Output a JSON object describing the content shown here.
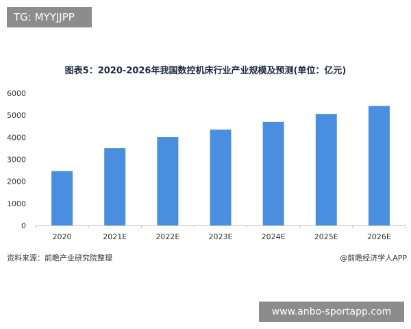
{
  "overlay": {
    "top_tag": "TG: MYYJJPP",
    "bottom_url": "www.anbo-sportapp.com"
  },
  "colors": {
    "bar": "#4a8fdf",
    "axis": "#bfbfbf"
  },
  "footer": {
    "source": "资料来源：前瞻产业研究院整理",
    "credit": "@前瞻经济学人APP"
  },
  "chart_data": {
    "type": "bar",
    "title": "图表5：2020-2026年我国数控机床行业产业规模及预测(单位：亿元)",
    "categories": [
      "2020",
      "2021E",
      "2022E",
      "2023E",
      "2024E",
      "2025E",
      "2026E"
    ],
    "values": [
      2470,
      3510,
      4010,
      4350,
      4700,
      5060,
      5420
    ],
    "ylim": [
      0,
      6000
    ],
    "yticks": [
      "0",
      "1000",
      "2000",
      "3000",
      "4000",
      "5000",
      "6000"
    ],
    "grid": false,
    "legend": "none"
  }
}
